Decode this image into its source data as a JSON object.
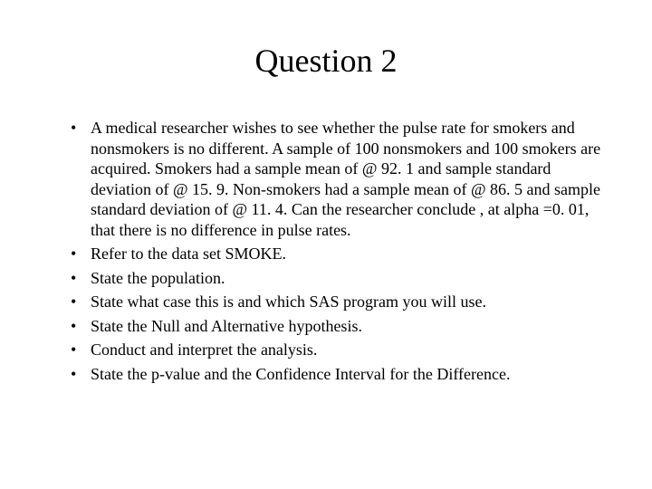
{
  "title": "Question 2",
  "bullets": [
    "A medical researcher wishes to see whether the pulse rate for smokers and nonsmokers is no different.  A sample of 100 nonsmokers and 100 smokers are acquired.  Smokers had a sample mean of @ 92. 1 and sample standard deviation of @ 15. 9.  Non-smokers had a sample mean of @ 86. 5 and sample standard deviation of @ 11. 4.  Can the researcher conclude , at alpha =0. 01, that there is no difference in pulse rates.",
    "Refer to the data set SMOKE.",
    "State the population.",
    "State what case this is and which SAS program you will use.",
    "State the Null and Alternative hypothesis.",
    "Conduct and interpret the analysis.",
    "State the p-value and the Confidence Interval for the Difference."
  ]
}
